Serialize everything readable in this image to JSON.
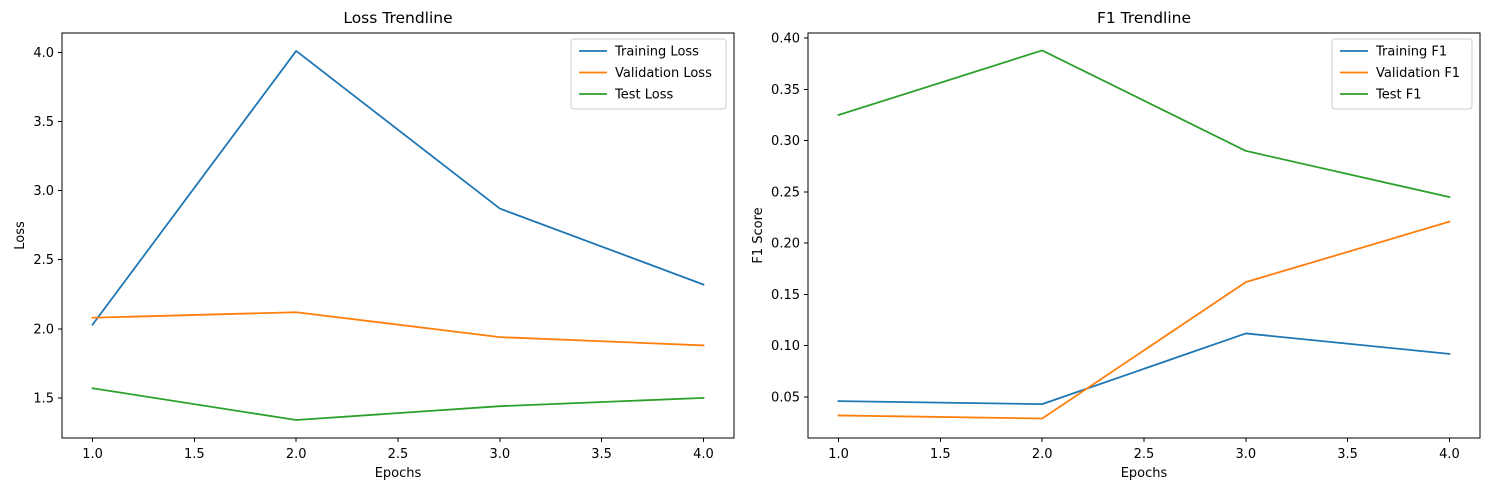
{
  "chart_data": [
    {
      "type": "line",
      "title": "Loss Trendline",
      "xlabel": "Epochs",
      "ylabel": "Loss",
      "x": [
        1,
        2,
        3,
        4
      ],
      "xlim": [
        0.85,
        4.15
      ],
      "ylim": [
        1.21,
        4.14
      ],
      "xticks": [
        1.0,
        1.5,
        2.0,
        2.5,
        3.0,
        3.5,
        4.0
      ],
      "xtick_labels": [
        "1.0",
        "1.5",
        "2.0",
        "2.5",
        "3.0",
        "3.5",
        "4.0"
      ],
      "yticks": [
        1.5,
        2.0,
        2.5,
        3.0,
        3.5,
        4.0
      ],
      "ytick_labels": [
        "1.5",
        "2.0",
        "2.5",
        "3.0",
        "3.5",
        "4.0"
      ],
      "grid": false,
      "legend": "top-right",
      "series": [
        {
          "name": "Training Loss",
          "color": "#1f77b4",
          "values": [
            2.03,
            4.01,
            2.87,
            2.32
          ]
        },
        {
          "name": "Validation Loss",
          "color": "#ff7f0e",
          "values": [
            2.08,
            2.12,
            1.94,
            1.88
          ]
        },
        {
          "name": "Test Loss",
          "color": "#2ca02c",
          "values": [
            1.57,
            1.34,
            1.44,
            1.5
          ]
        }
      ]
    },
    {
      "type": "line",
      "title": "F1 Trendline",
      "xlabel": "Epochs",
      "ylabel": "F1 Score",
      "x": [
        1,
        2,
        3,
        4
      ],
      "xlim": [
        0.85,
        4.15
      ],
      "ylim": [
        0.01,
        0.405
      ],
      "xticks": [
        1.0,
        1.5,
        2.0,
        2.5,
        3.0,
        3.5,
        4.0
      ],
      "xtick_labels": [
        "1.0",
        "1.5",
        "2.0",
        "2.5",
        "3.0",
        "3.5",
        "4.0"
      ],
      "yticks": [
        0.05,
        0.1,
        0.15,
        0.2,
        0.25,
        0.3,
        0.35,
        0.4
      ],
      "ytick_labels": [
        "0.05",
        "0.10",
        "0.15",
        "0.20",
        "0.25",
        "0.30",
        "0.35",
        "0.40"
      ],
      "grid": false,
      "legend": "top-right",
      "series": [
        {
          "name": "Training F1",
          "color": "#1f77b4",
          "values": [
            0.046,
            0.043,
            0.112,
            0.092
          ]
        },
        {
          "name": "Validation F1",
          "color": "#ff7f0e",
          "values": [
            0.032,
            0.029,
            0.162,
            0.221
          ]
        },
        {
          "name": "Test F1",
          "color": "#2ca02c",
          "values": [
            0.325,
            0.388,
            0.29,
            0.245
          ]
        }
      ]
    }
  ]
}
